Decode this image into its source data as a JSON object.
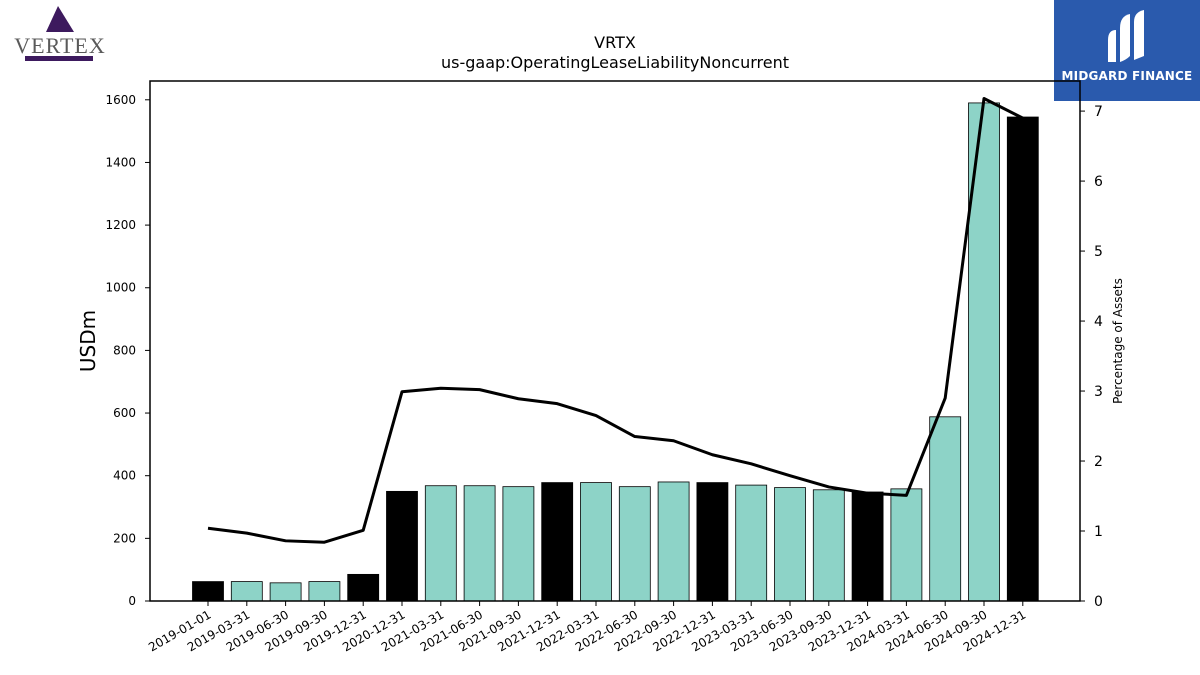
{
  "branding": {
    "left_logo_text": "VERTEX",
    "right_logo_text": "MIDGARD FINANCE",
    "left_logo_color": "#3d1a5e",
    "right_logo_bg": "#2a5aad"
  },
  "chart_data": {
    "type": "bar",
    "title": "VRTX",
    "subtitle": "us-gaap:OperatingLeaseLiabilityNoncurrent",
    "ylabel": "USDm",
    "y2label": "Percentage of Assets",
    "ylim": [
      0,
      1660
    ],
    "y2lim": [
      0,
      7.43
    ],
    "yticks": [
      0,
      200,
      400,
      600,
      800,
      1000,
      1200,
      1400,
      1600
    ],
    "y2ticks": [
      0,
      1,
      2,
      3,
      4,
      5,
      6,
      7
    ],
    "categories": [
      "2019-01-01",
      "2019-03-31",
      "2019-06-30",
      "2019-09-30",
      "2019-12-31",
      "2020-12-31",
      "2021-03-31",
      "2021-06-30",
      "2021-09-30",
      "2021-12-31",
      "2022-03-31",
      "2022-06-30",
      "2022-09-30",
      "2022-12-31",
      "2023-03-31",
      "2023-06-30",
      "2023-09-30",
      "2023-12-31",
      "2024-03-31",
      "2024-06-30",
      "2024-09-30",
      "2024-12-31"
    ],
    "series": [
      {
        "type": "bar",
        "axis": "left",
        "values": [
          62,
          62,
          58,
          62,
          85,
          350,
          368,
          368,
          365,
          378,
          378,
          365,
          380,
          378,
          370,
          362,
          355,
          348,
          358,
          588,
          1590,
          1545
        ],
        "annual": [
          true,
          false,
          false,
          false,
          true,
          true,
          false,
          false,
          false,
          true,
          false,
          false,
          false,
          true,
          false,
          false,
          false,
          true,
          false,
          false,
          false,
          true
        ]
      },
      {
        "type": "line",
        "axis": "right",
        "values": [
          1.04,
          0.97,
          0.86,
          0.84,
          1.01,
          2.99,
          3.04,
          3.02,
          2.89,
          2.82,
          2.65,
          2.35,
          2.29,
          2.09,
          1.96,
          1.79,
          1.63,
          1.54,
          1.51,
          2.9,
          7.18,
          6.9
        ]
      }
    ],
    "colors": {
      "annual_bar": "#000000",
      "quarterly_bar": "#8dd3c7",
      "bar_edge": "#000000",
      "line": "#000000"
    },
    "grid": false
  }
}
